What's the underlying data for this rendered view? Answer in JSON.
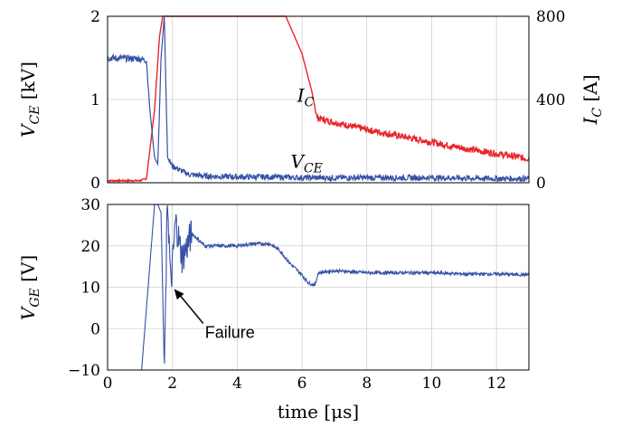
{
  "chart_data": [
    {
      "type": "line",
      "panel": "top",
      "xlim": [
        0,
        13
      ],
      "ylim": [
        0,
        2
      ],
      "y2lim": [
        0,
        800
      ],
      "xticks": [
        0,
        2,
        4,
        6,
        8,
        10,
        12
      ],
      "yticks": [
        0,
        1,
        2
      ],
      "y2ticks": [
        0,
        400,
        800
      ],
      "ylabel": {
        "base": "V",
        "sub": "CE",
        "unit": " [kV]"
      },
      "y2label": {
        "base": "I",
        "sub": "C",
        "unit": " [A]"
      },
      "grid": true,
      "series": [
        {
          "name": {
            "base": "I",
            "sub": "C"
          },
          "axis": "right",
          "color": "#e8262a",
          "x": [
            0,
            1.0,
            1.2,
            1.45,
            1.6,
            1.7,
            1.75,
            1.8,
            1.9,
            2.0,
            5.2,
            5.5,
            6.0,
            6.3,
            6.45,
            6.5,
            7,
            8,
            9,
            10,
            11,
            12,
            13
          ],
          "y": [
            10,
            10,
            20,
            350,
            700,
            800,
            800,
            800,
            800,
            800,
            800,
            800,
            620,
            440,
            320,
            310,
            290,
            255,
            225,
            195,
            165,
            140,
            115
          ]
        },
        {
          "name": {
            "base": "V",
            "sub": "CE"
          },
          "axis": "left",
          "color": "#3550a6",
          "x": [
            0,
            1.0,
            1.2,
            1.3,
            1.45,
            1.55,
            1.65,
            1.75,
            1.85,
            2.0,
            2.5,
            3,
            4,
            5,
            6,
            8,
            10,
            12,
            13
          ],
          "y": [
            1.5,
            1.49,
            1.47,
            0.9,
            0.3,
            0.22,
            1.5,
            2.0,
            0.3,
            0.2,
            0.1,
            0.08,
            0.07,
            0.07,
            0.06,
            0.06,
            0.06,
            0.05,
            0.05
          ]
        }
      ]
    },
    {
      "type": "line",
      "panel": "bottom",
      "xlim": [
        0,
        13
      ],
      "ylim": [
        -10,
        30
      ],
      "xticks": [
        0,
        2,
        4,
        6,
        8,
        10,
        12
      ],
      "yticks": [
        -10,
        0,
        10,
        20,
        30
      ],
      "xlabel": "time [μs]",
      "ylabel": {
        "base": "V",
        "sub": "GE",
        "unit": " [V]"
      },
      "grid": true,
      "annotation": {
        "text": "Failure",
        "x": 2.0,
        "y": 10
      },
      "series": [
        {
          "name": "",
          "color": "#3550a6",
          "x": [
            1.05,
            1.2,
            1.35,
            1.45,
            1.55,
            1.65,
            1.75,
            1.85,
            1.95,
            2.1,
            2.3,
            2.6,
            3.0,
            3.5,
            4.0,
            4.5,
            5.0,
            5.3,
            5.6,
            6.0,
            6.2,
            6.4,
            6.5,
            7,
            8,
            9,
            10,
            11,
            12,
            13
          ],
          "y": [
            -10,
            5,
            20,
            30,
            30,
            28,
            -10,
            32,
            10,
            26,
            17,
            23,
            20,
            20,
            20,
            20.5,
            20.5,
            19,
            16,
            13,
            11,
            10.5,
            13.5,
            14,
            13.5,
            13.5,
            13.5,
            13.2,
            13.2,
            13
          ]
        }
      ]
    }
  ]
}
